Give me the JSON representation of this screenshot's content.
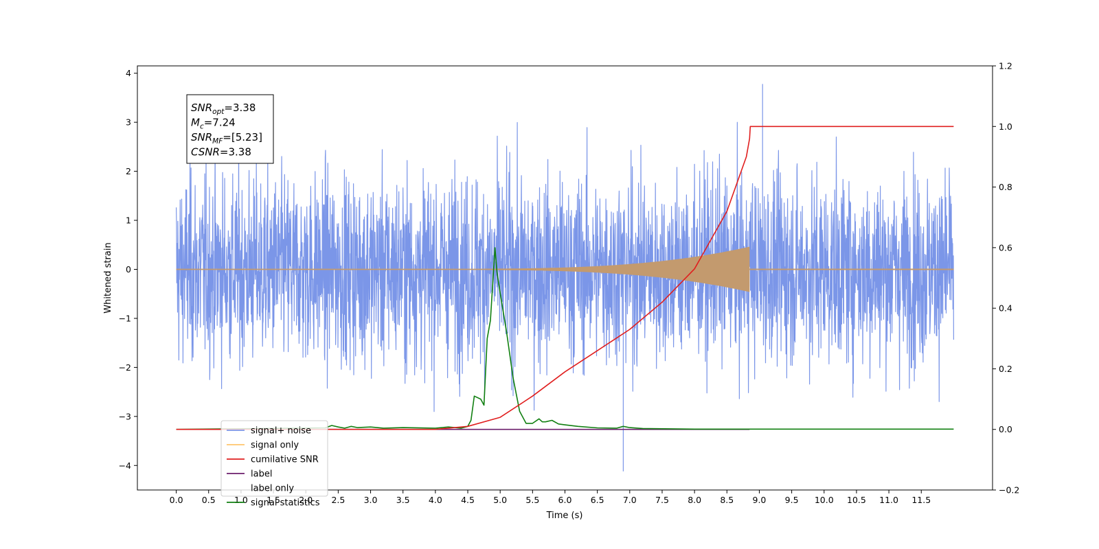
{
  "chart_data": {
    "type": "line",
    "xlabel": "Time (s)",
    "ylabel": "Whitened strain",
    "xlim": [
      -0.6,
      12.6
    ],
    "ylim_left": [
      -4.5,
      4.15
    ],
    "ylim_right": [
      -0.2,
      1.2
    ],
    "x_ticks": [
      "0.0",
      "0.5",
      "1.0",
      "1.5",
      "2.0",
      "2.5",
      "3.0",
      "3.5",
      "4.0",
      "4.5",
      "5.0",
      "5.5",
      "6.0",
      "6.5",
      "7.0",
      "7.5",
      "8.0",
      "8.5",
      "9.0",
      "9.5",
      "10.0",
      "10.5",
      "11.0",
      "11.5"
    ],
    "y_ticks_left": [
      "−4",
      "−3",
      "−2",
      "−1",
      "0",
      "1",
      "2",
      "3",
      "4"
    ],
    "y_ticks_right": [
      "−0.2",
      "0.0",
      "0.2",
      "0.4",
      "0.6",
      "0.8",
      "1.0",
      "1.2"
    ],
    "grid": false,
    "legend_position": "lower-left",
    "annotation": {
      "lines": [
        {
          "base": "SNR",
          "sub": "opt",
          "rest": "=3.38"
        },
        {
          "base": "M",
          "sub": "c",
          "rest": "=7.24"
        },
        {
          "base": "SNR",
          "sub": "MF",
          "rest": "=[5.23]"
        },
        {
          "base": "CSNR",
          "sub": "",
          "rest": "=3.38"
        }
      ]
    },
    "series": [
      {
        "name": "signal+ noise",
        "color": "#7b96e8",
        "axis": "left",
        "kind": "noise",
        "x_range": [
          0.0,
          12.0
        ],
        "envelope_typical": [
          -2.0,
          2.4
        ],
        "extreme_peaks": [
          3.78,
          -4.12
        ]
      },
      {
        "name": "signal only",
        "color": "#ffc56b",
        "axis": "left",
        "kind": "chirp",
        "x_range": [
          0.0,
          12.0
        ],
        "chirp_end_x": 8.85,
        "chirp_peak_amplitude": 0.45
      },
      {
        "name": "cumilative SNR",
        "color": "#e01e1e",
        "axis": "right",
        "x": [
          0.0,
          4.0,
          4.5,
          5.0,
          5.5,
          6.0,
          6.5,
          7.0,
          7.5,
          8.0,
          8.5,
          8.8,
          8.85,
          8.86,
          12.0
        ],
        "y": [
          0.0,
          0.0,
          0.01,
          0.04,
          0.11,
          0.19,
          0.26,
          0.33,
          0.42,
          0.53,
          0.72,
          0.9,
          0.96,
          1.0,
          1.0
        ]
      },
      {
        "name": "label",
        "color": "#6b1e6b",
        "axis": "right",
        "x": [
          2.3,
          8.85
        ],
        "y": [
          0.0,
          0.0
        ]
      },
      {
        "name": "label only",
        "color": "#ffffff",
        "axis": "right",
        "x": [],
        "y": []
      },
      {
        "name": "signal statistics",
        "color": "#107f10",
        "axis": "right",
        "x": [
          0.0,
          2.3,
          2.4,
          2.5,
          2.6,
          2.7,
          2.8,
          3.0,
          3.2,
          3.5,
          4.0,
          4.2,
          4.4,
          4.5,
          4.55,
          4.6,
          4.7,
          4.75,
          4.8,
          4.85,
          4.92,
          4.95,
          5.0,
          5.1,
          5.2,
          5.3,
          5.4,
          5.5,
          5.6,
          5.65,
          5.7,
          5.8,
          5.9,
          6.0,
          6.2,
          6.5,
          6.8,
          6.9,
          7.0,
          7.2,
          8.0,
          12.0
        ],
        "y": [
          0.0,
          0.005,
          0.013,
          0.008,
          0.004,
          0.01,
          0.006,
          0.008,
          0.004,
          0.006,
          0.004,
          0.008,
          0.004,
          0.01,
          0.03,
          0.11,
          0.1,
          0.08,
          0.3,
          0.36,
          0.6,
          0.52,
          0.45,
          0.32,
          0.17,
          0.06,
          0.02,
          0.02,
          0.035,
          0.025,
          0.025,
          0.03,
          0.018,
          0.015,
          0.01,
          0.005,
          0.004,
          0.01,
          0.006,
          0.003,
          0.001,
          0.001
        ]
      }
    ]
  }
}
